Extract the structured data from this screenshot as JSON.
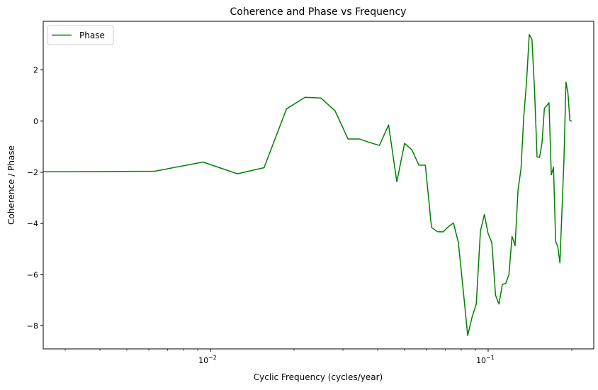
{
  "chart_data": {
    "type": "line",
    "title": "Coherence and Phase vs Frequency",
    "xlabel": "Cyclic Frequency (cycles/year)",
    "ylabel": "Coherence / Phase",
    "xscale": "log",
    "xlim": [
      0.0025,
      0.24
    ],
    "ylim": [
      -8.9,
      3.9
    ],
    "grid": false,
    "legend": {
      "placement": "top-left",
      "entries": [
        "Phase"
      ]
    },
    "x_ticks": [
      {
        "value": 0.01,
        "base": "10",
        "exp": "−2"
      },
      {
        "value": 0.1,
        "base": "10",
        "exp": "−1"
      }
    ],
    "y_ticks": [
      {
        "value": 2,
        "label": "2"
      },
      {
        "value": 0,
        "label": "0"
      },
      {
        "value": -2,
        "label": "−2"
      },
      {
        "value": -4,
        "label": "−4"
      },
      {
        "value": -6,
        "label": "−6"
      },
      {
        "value": -8,
        "label": "−8"
      }
    ],
    "series": [
      {
        "name": "Phase",
        "color": "#008000",
        "x": [
          0.0025,
          0.0031,
          0.0063,
          0.0094,
          0.0125,
          0.0156,
          0.0188,
          0.0219,
          0.025,
          0.0281,
          0.0313,
          0.0344,
          0.0375,
          0.0406,
          0.0438,
          0.0469,
          0.05,
          0.0531,
          0.0563,
          0.0594,
          0.0625,
          0.0656,
          0.0688,
          0.0719,
          0.075,
          0.0781,
          0.0813,
          0.0844,
          0.0875,
          0.0906,
          0.0938,
          0.0969,
          0.1,
          0.1031,
          0.1063,
          0.1094,
          0.1125,
          0.1156,
          0.1188,
          0.1219,
          0.125,
          0.1281,
          0.1313,
          0.1344,
          0.1375,
          0.1406,
          0.1438,
          0.1469,
          0.15,
          0.1531,
          0.1563,
          0.1594,
          0.1625,
          0.1656,
          0.1688,
          0.1719,
          0.175,
          0.1781,
          0.1813,
          0.1844,
          0.1875,
          0.1906,
          0.1938,
          0.1969,
          0.2
        ],
        "y": [
          -1.98,
          -1.98,
          -1.96,
          -1.6,
          -2.06,
          -1.82,
          0.48,
          0.93,
          0.9,
          0.4,
          -0.7,
          -0.7,
          -0.84,
          -0.95,
          -0.15,
          -2.37,
          -0.87,
          -1.12,
          -1.72,
          -1.72,
          -4.15,
          -4.32,
          -4.33,
          -4.13,
          -3.98,
          -4.74,
          -6.59,
          -8.38,
          -7.66,
          -7.15,
          -4.3,
          -3.65,
          -4.4,
          -4.75,
          -6.8,
          -7.15,
          -6.38,
          -6.35,
          -6.0,
          -4.5,
          -4.87,
          -2.7,
          -1.87,
          0.2,
          1.55,
          3.38,
          3.18,
          1.2,
          -1.4,
          -1.42,
          -0.85,
          0.5,
          0.6,
          0.72,
          -2.1,
          -1.8,
          -4.7,
          -4.9,
          -5.54,
          -3.5,
          -1.5,
          1.52,
          1.1,
          0.02,
          0.0
        ]
      }
    ]
  }
}
